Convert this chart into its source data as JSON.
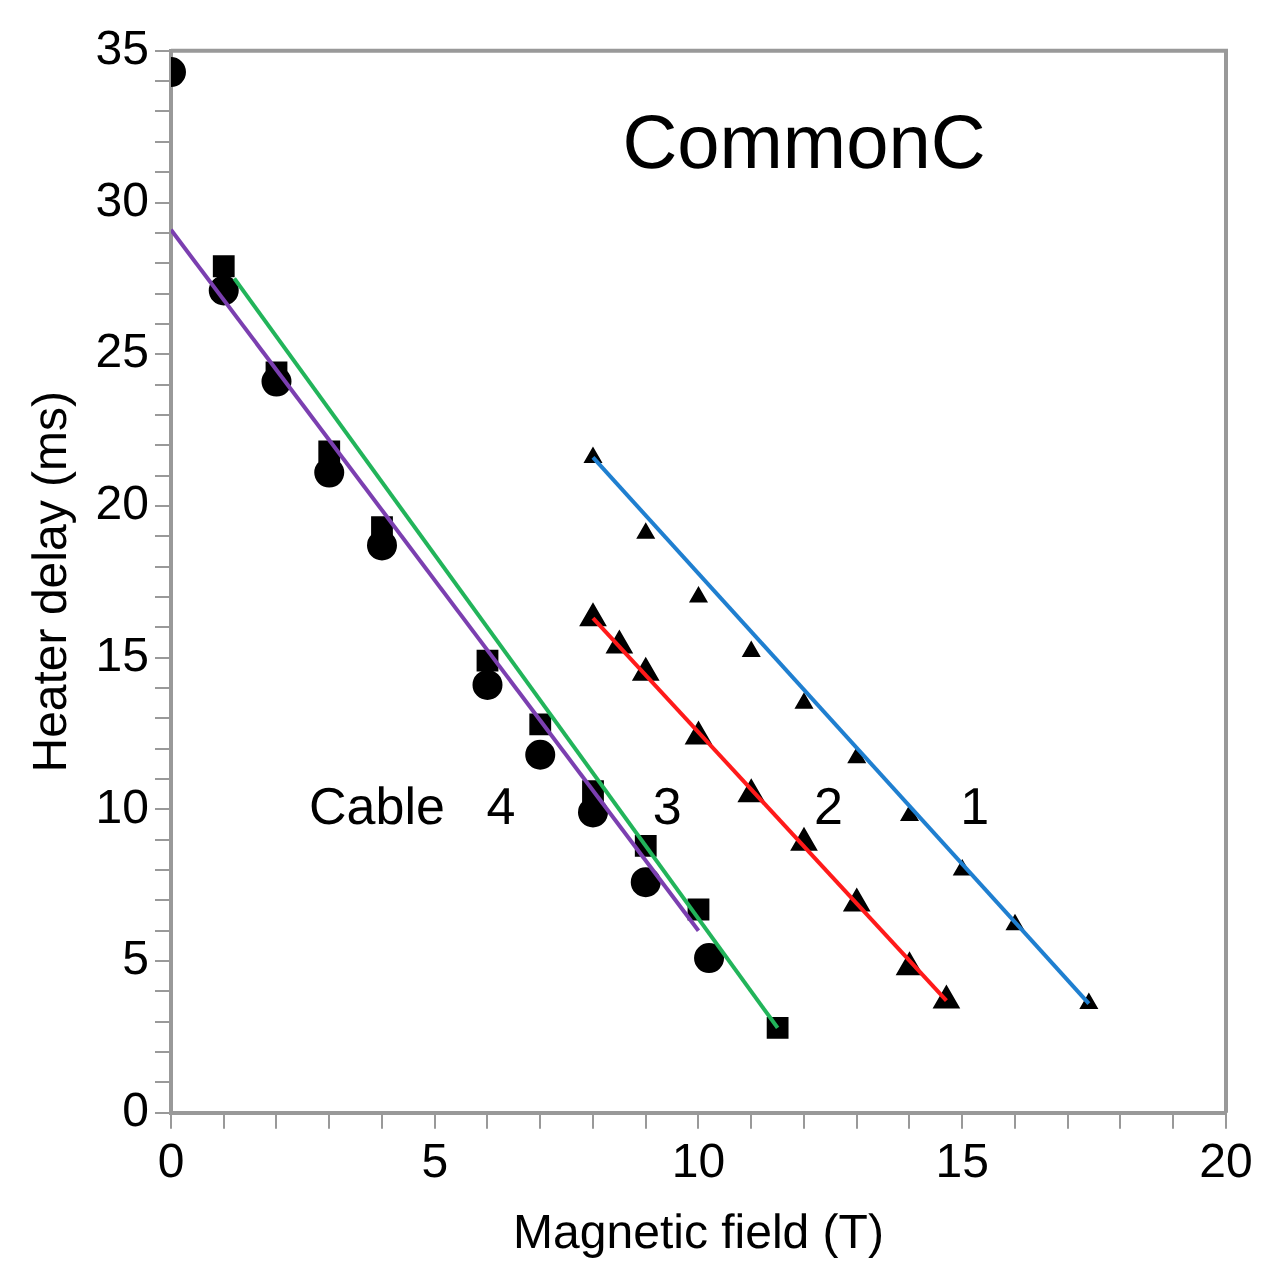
{
  "chart_data": {
    "type": "scatter",
    "title": "CommonC",
    "xlabel": "Magnetic field (T)",
    "ylabel": "Heater delay (ms)",
    "xlim": [
      0,
      20
    ],
    "ylim": [
      0,
      35
    ],
    "xticks": [
      0,
      {
        "value": 1,
        "label": null
      },
      {
        "value": 2,
        "label": null
      },
      {
        "value": 3,
        "label": null
      },
      {
        "value": 4,
        "label": null
      },
      5,
      {
        "value": 6,
        "label": null
      },
      {
        "value": 7,
        "label": null
      },
      {
        "value": 8,
        "label": null
      },
      {
        "value": 9,
        "label": null
      },
      10,
      {
        "value": 11,
        "label": null
      },
      {
        "value": 12,
        "label": null
      },
      {
        "value": 13,
        "label": null
      },
      {
        "value": 14,
        "label": null
      },
      15,
      {
        "value": 16,
        "label": null
      },
      {
        "value": 17,
        "label": null
      },
      {
        "value": 18,
        "label": null
      },
      {
        "value": 19,
        "label": null
      },
      20
    ],
    "yticks": [
      0,
      {
        "value": 1,
        "label": null
      },
      {
        "value": 2,
        "label": null
      },
      {
        "value": 3,
        "label": null
      },
      {
        "value": 4,
        "label": null
      },
      5,
      {
        "value": 6,
        "label": null
      },
      {
        "value": 7,
        "label": null
      },
      {
        "value": 8,
        "label": null
      },
      {
        "value": 9,
        "label": null
      },
      10,
      {
        "value": 11,
        "label": null
      },
      {
        "value": 12,
        "label": null
      },
      {
        "value": 13,
        "label": null
      },
      {
        "value": 14,
        "label": null
      },
      15,
      {
        "value": 16,
        "label": null
      },
      {
        "value": 17,
        "label": null
      },
      {
        "value": 18,
        "label": null
      },
      {
        "value": 19,
        "label": null
      },
      20,
      {
        "value": 21,
        "label": null
      },
      {
        "value": 22,
        "label": null
      },
      {
        "value": 23,
        "label": null
      },
      {
        "value": 24,
        "label": null
      },
      25,
      {
        "value": 26,
        "label": null
      },
      {
        "value": 27,
        "label": null
      },
      {
        "value": 28,
        "label": null
      },
      {
        "value": 29,
        "label": null
      },
      30,
      {
        "value": 31,
        "label": null
      },
      {
        "value": 32,
        "label": null
      },
      {
        "value": 33,
        "label": null
      },
      {
        "value": 34,
        "label": null
      },
      35
    ],
    "grid": false,
    "legend": false,
    "series": [
      {
        "type": "line",
        "color": "#1f7fd0",
        "marker": "none",
        "x": [
          8,
          17.4
        ],
        "values": [
          21.6,
          3.6
        ]
      },
      {
        "type": "line",
        "color": "#ff1a1a",
        "marker": "none",
        "x": [
          8,
          14.7
        ],
        "values": [
          16.3,
          3.7
        ]
      },
      {
        "type": "line",
        "color": "#22b45a",
        "marker": "none",
        "x": [
          1.2,
          11.5
        ],
        "values": [
          27.5,
          2.8
        ]
      },
      {
        "type": "line",
        "color": "#7b3fb0",
        "marker": "none",
        "x": [
          0,
          10
        ],
        "values": [
          29.1,
          6
        ]
      },
      {
        "type": "scatter",
        "name": "1",
        "color": "#000000",
        "marker": "triangle",
        "x": [
          8,
          9,
          10,
          11,
          12,
          13,
          14,
          15,
          16,
          17.4
        ],
        "values": [
          21.6,
          19.1,
          17.0,
          15.2,
          13.5,
          11.7,
          9.8,
          8.0,
          6.2,
          3.6
        ]
      },
      {
        "type": "scatter",
        "name": "2",
        "color": "#000000",
        "marker": "triangle",
        "x": [
          8,
          8.5,
          9,
          10,
          11,
          12,
          13,
          14,
          14.7
        ],
        "values": [
          16.3,
          15.4,
          14.5,
          12.4,
          10.5,
          8.9,
          6.9,
          4.8,
          3.7
        ]
      },
      {
        "type": "scatter",
        "name": "3",
        "color": "#000000",
        "marker": "square",
        "x": [
          1,
          2,
          3,
          4,
          6,
          7,
          8,
          9,
          10,
          11.5
        ],
        "values": [
          27.9,
          24.4,
          21.8,
          19.3,
          14.9,
          12.8,
          10.6,
          8.8,
          6.7,
          2.8
        ]
      },
      {
        "type": "scatter",
        "name": "4",
        "color": "#000000",
        "marker": "circle",
        "x": [
          0,
          1,
          2,
          3,
          4,
          6,
          7,
          8,
          9,
          10.2
        ],
        "values": [
          34.3,
          27.1,
          24.1,
          21.1,
          18.7,
          14.1,
          11.8,
          9.9,
          7.6,
          5.1
        ]
      }
    ],
    "annotations": [
      "Cable"
    ]
  }
}
